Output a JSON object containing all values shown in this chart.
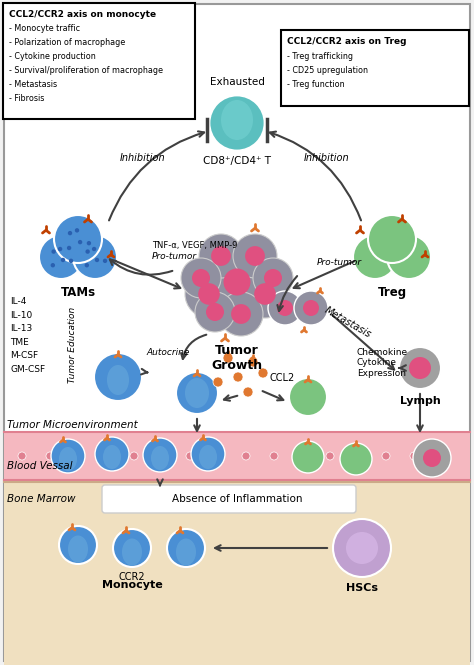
{
  "bg_color": "#f2f2f2",
  "box1_title": "CCL2/CCR2 axis on monocyte",
  "box1_items": [
    "- Monocyte traffic",
    "- Polarization of macrophage",
    "- Cytokine production",
    "- Survival/proliferation of macrophage",
    "- Metastasis",
    "- Fibrosis"
  ],
  "box2_title": "CCL2/CCR2 axis on Treg",
  "box2_items": [
    "- Treg trafficking",
    "- CD25 upregulation",
    "- Treg function"
  ],
  "tme_label": "Tumor Microenvironment",
  "bv_label": "Blood Vessal",
  "bm_label": "Bone Marrow",
  "absence_label": "Absence of Inflammation",
  "exhausted_label": "Exhausted",
  "cd8_label": "CD8⁺/CD4⁺ T",
  "tams_label": "TAMs",
  "treg_label": "Treg",
  "tumor_label": "Tumor\nGrowth",
  "lymph_label": "Lymph",
  "monocyte_label": "Monocyte",
  "hscs_label": "HSCs",
  "ccr2_label": "CCR2",
  "ccl2_label": "CCL2",
  "autocrine_label": "Autocrine",
  "metastasis_label": "Metastasis",
  "pro_tumor1": "TNF-α, VEGF, MMP-9",
  "pro_tumor2": "Pro-tumor",
  "pro_tumor3": "Pro-tumor",
  "inhibition1": "Inhibition",
  "inhibition2": "Inhibition",
  "tumor_education": "Tumor Education",
  "chemokine_label": "Chemokine\nCytokine\nExpression",
  "il_labels": [
    "IL-4",
    "IL-10",
    "IL-13",
    "TME",
    "M-CSF",
    "GM-CSF"
  ],
  "cell_blue_dark": "#4a8fd4",
  "cell_blue_light": "#7ec8e3",
  "cell_teal": "#5bbfbf",
  "cell_green": "#7bc47f",
  "cell_gray": "#a0a0a0",
  "cell_pink": "#e05080",
  "cell_orange": "#e07830",
  "cell_lavender": "#c0a0d0",
  "vessel_pink": "#f5b8c0",
  "vessel_red": "#e08090",
  "bone_tan": "#f0e0c0"
}
